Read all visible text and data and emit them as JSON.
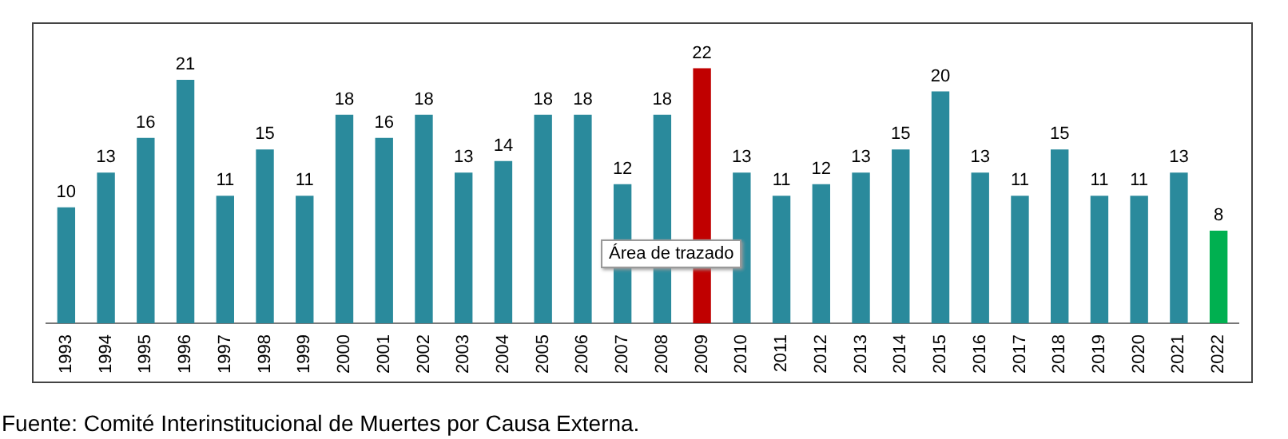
{
  "chart_data": {
    "type": "bar",
    "categories": [
      "1993",
      "1994",
      "1995",
      "1996",
      "1997",
      "1998",
      "1999",
      "2000",
      "2001",
      "2002",
      "2003",
      "2004",
      "2005",
      "2006",
      "2007",
      "2008",
      "2009",
      "2010",
      "2011",
      "2012",
      "2013",
      "2014",
      "2015",
      "2016",
      "2017",
      "2018",
      "2019",
      "2020",
      "2021",
      "2022"
    ],
    "values": [
      10,
      13,
      16,
      21,
      11,
      15,
      11,
      18,
      16,
      18,
      13,
      14,
      18,
      18,
      12,
      18,
      22,
      13,
      11,
      12,
      13,
      15,
      20,
      13,
      11,
      15,
      11,
      11,
      13,
      8
    ],
    "colors": [
      "#2a8a9c",
      "#2a8a9c",
      "#2a8a9c",
      "#2a8a9c",
      "#2a8a9c",
      "#2a8a9c",
      "#2a8a9c",
      "#2a8a9c",
      "#2a8a9c",
      "#2a8a9c",
      "#2a8a9c",
      "#2a8a9c",
      "#2a8a9c",
      "#2a8a9c",
      "#2a8a9c",
      "#2a8a9c",
      "#c00000",
      "#2a8a9c",
      "#2a8a9c",
      "#2a8a9c",
      "#2a8a9c",
      "#2a8a9c",
      "#2a8a9c",
      "#2a8a9c",
      "#2a8a9c",
      "#2a8a9c",
      "#2a8a9c",
      "#2a8a9c",
      "#2a8a9c",
      "#00b050"
    ],
    "data_labels": true,
    "legend": false,
    "grid": false,
    "tick_labels": "x",
    "annotations": [
      "Área de trazado",
      "Fuente: Comité Interinstitucional de Muertes por Causa Externa."
    ]
  }
}
